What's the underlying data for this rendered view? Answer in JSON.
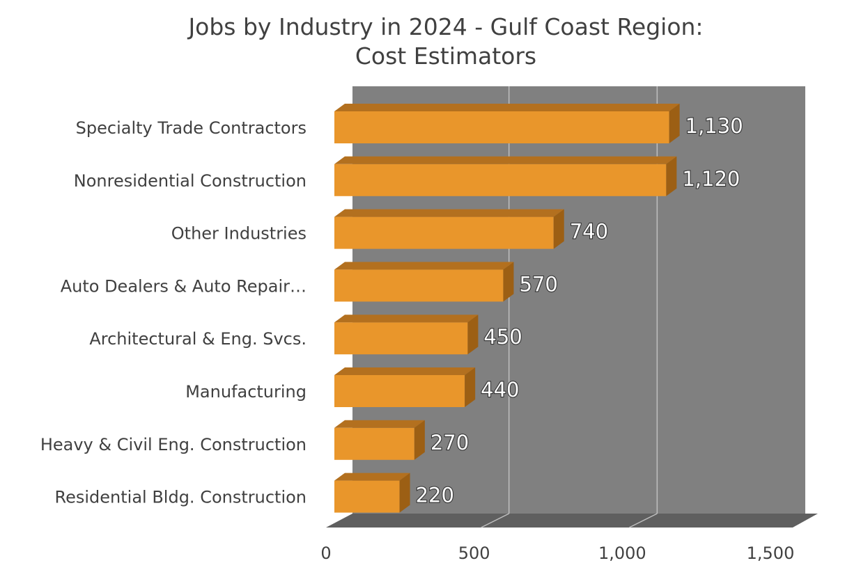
{
  "chart_data": {
    "type": "bar",
    "orientation": "horizontal",
    "style": "3d-clustered-bar",
    "title": "Jobs by Industry in 2024 - Gulf Coast Region:",
    "subtitle": "Cost Estimators",
    "categories": [
      "Specialty Trade Contractors",
      "Nonresidential Construction",
      "Other Industries",
      "Auto Dealers & Auto Repair…",
      "Architectural & Eng. Svcs.",
      "Manufacturing",
      "Heavy & Civil Eng. Construction",
      "Residential Bldg. Construction"
    ],
    "values": [
      1130,
      1120,
      740,
      570,
      450,
      440,
      270,
      220
    ],
    "value_labels": [
      "1,130",
      "1,120",
      "740",
      "570",
      "450",
      "440",
      "270",
      "220"
    ],
    "xlim": [
      0,
      1500
    ],
    "xticks": [
      0,
      500,
      1000,
      1500
    ],
    "xtick_labels": [
      "0",
      "500",
      "1,000",
      "1,500"
    ],
    "xlabel": "",
    "ylabel": "",
    "grid": true,
    "legend": "none",
    "colors": {
      "bar_front": "#E9962B",
      "bar_top": "#B3701F",
      "bar_side": "#9C5F14",
      "back_wall": "#808080",
      "floor": "#5F5F5F",
      "gridline": "#BFBFBF",
      "text": "#404040"
    }
  }
}
